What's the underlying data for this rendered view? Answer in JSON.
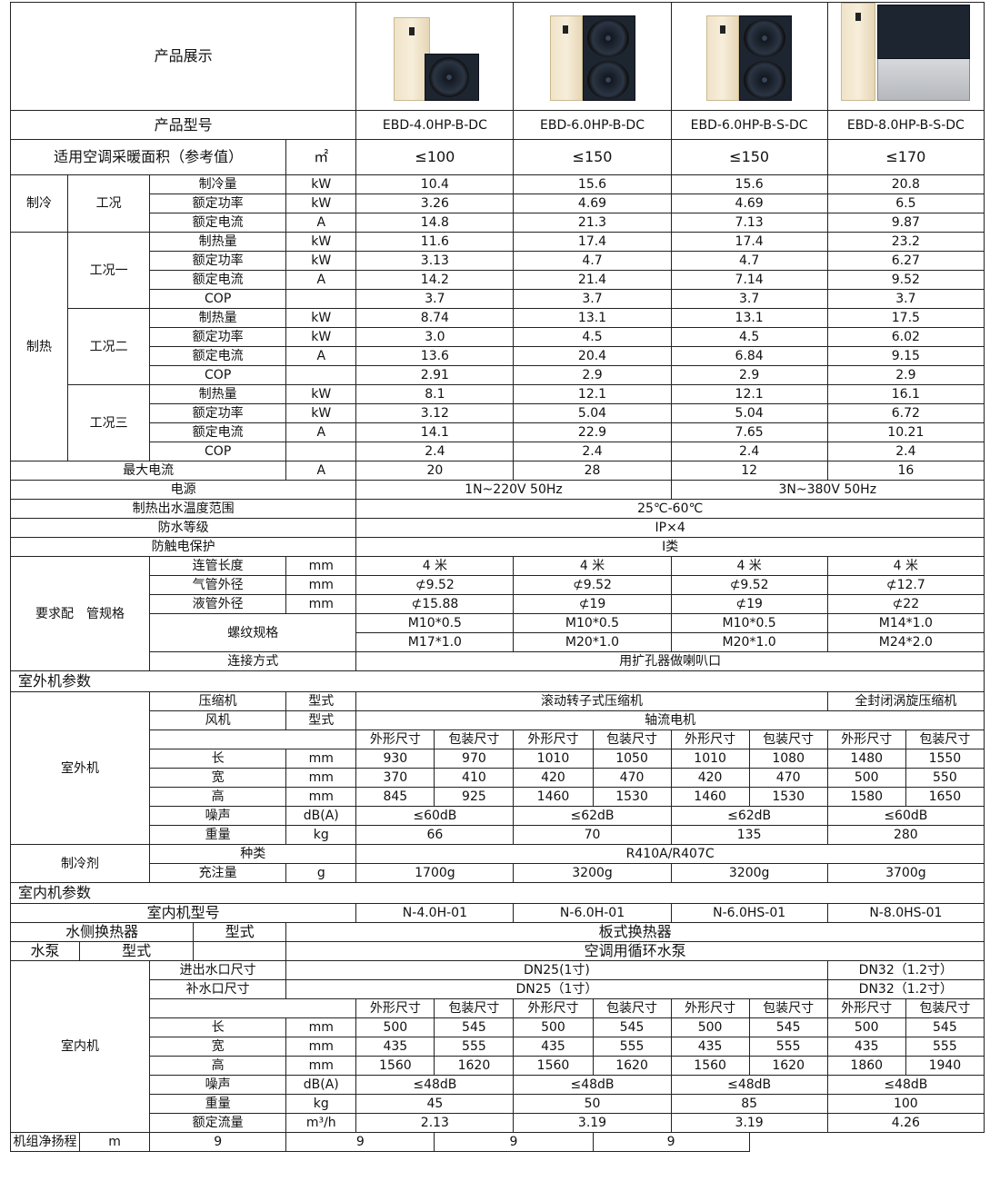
{
  "header": {
    "showcase": "产品展示",
    "model_label": "产品型号",
    "models": [
      "EBD-4.0HP-B-DC",
      "EBD-6.0HP-B-DC",
      "EBD-6.0HP-B-S-DC",
      "EBD-8.0HP-B-S-DC"
    ],
    "images": [
      "indoor-cabinet-plus-small-fan-unit",
      "indoor-cabinet-plus-double-fan-unit",
      "indoor-cabinet-plus-double-fan-unit",
      "indoor-cabinet-plus-large-fan-unit"
    ]
  },
  "area": {
    "label": "适用空调采暖面积（参考值）",
    "unit": "㎡",
    "values": [
      "≤100",
      "≤150",
      "≤150",
      "≤170"
    ]
  },
  "labels": {
    "cap_cool": "制冷量",
    "power": "额定功率",
    "current": "额定电流",
    "cap_heat": "制热量",
    "cop": "COP",
    "kw": "kW",
    "a": "A",
    "mm": "mm",
    "type": "型式",
    "outer": "外形尺寸",
    "pack": "包装尺寸",
    "len": "长",
    "wid": "宽",
    "hgt": "高",
    "noise": "噪声",
    "dba": "dB(A)",
    "weight": "重量",
    "kg": "kg"
  },
  "cooling": {
    "group": "制冷",
    "cond": "工况",
    "rows": [
      [
        "10.4",
        "15.6",
        "15.6",
        "20.8"
      ],
      [
        "3.26",
        "4.69",
        "4.69",
        "6.5"
      ],
      [
        "14.8",
        "21.3",
        "7.13",
        "9.87"
      ]
    ]
  },
  "heating": {
    "group": "制热",
    "conds": [
      "工况一",
      "工况二",
      "工况三"
    ],
    "rows": [
      [
        [
          "11.6",
          "17.4",
          "17.4",
          "23.2"
        ],
        [
          "3.13",
          "4.7",
          "4.7",
          "6.27"
        ],
        [
          "14.2",
          "21.4",
          "7.14",
          "9.52"
        ],
        [
          "3.7",
          "3.7",
          "3.7",
          "3.7"
        ]
      ],
      [
        [
          "8.74",
          "13.1",
          "13.1",
          "17.5"
        ],
        [
          "3.0",
          "4.5",
          "4.5",
          "6.02"
        ],
        [
          "13.6",
          "20.4",
          "6.84",
          "9.15"
        ],
        [
          "2.91",
          "2.9",
          "2.9",
          "2.9"
        ]
      ],
      [
        [
          "8.1",
          "12.1",
          "12.1",
          "16.1"
        ],
        [
          "3.12",
          "5.04",
          "5.04",
          "6.72"
        ],
        [
          "14.1",
          "22.9",
          "7.65",
          "10.21"
        ],
        [
          "2.4",
          "2.4",
          "2.4",
          "2.4"
        ]
      ]
    ]
  },
  "max_current": {
    "label": "最大电流",
    "unit": "A",
    "values": [
      "20",
      "28",
      "12",
      "16"
    ]
  },
  "power_supply": {
    "label": "电源",
    "values": [
      "1N~220V 50Hz",
      "3N~380V 50Hz"
    ]
  },
  "water_temp": {
    "label": "制热出水温度范围",
    "value": "25℃-60℃"
  },
  "waterproof": {
    "label": "防水等级",
    "value": "IP×4"
  },
  "shock": {
    "label": "防触电保护",
    "value": "Ⅰ类"
  },
  "piping": {
    "group": "要求配　管规格",
    "length": {
      "label": "连管长度",
      "values": [
        "4 米",
        "4 米",
        "4 米",
        "4 米"
      ]
    },
    "gas": {
      "label": "气管外径",
      "values": [
        "⊄9.52",
        "⊄9.52",
        "⊄9.52",
        "⊄12.7"
      ]
    },
    "liquid": {
      "label": "液管外径",
      "values": [
        "⊄15.88",
        "⊄19",
        "⊄19",
        "⊄22"
      ]
    },
    "thread": {
      "label": "螺纹规格",
      "row1": [
        "M10*0.5",
        "M10*0.5",
        "M10*0.5",
        "M14*1.0"
      ],
      "row2": [
        "M17*1.0",
        "M20*1.0",
        "M20*1.0",
        "M24*2.0"
      ]
    },
    "connect": {
      "label": "连接方式",
      "value": "用扩孔器做喇叭口"
    }
  },
  "outdoor": {
    "section": "室外机参数",
    "group": "室外机",
    "compressor": {
      "label": "压缩机",
      "values": [
        "滚动转子式压缩机",
        "全封闭涡旋压缩机"
      ]
    },
    "fan": {
      "label": "风机",
      "value": "轴流电机"
    },
    "len": [
      "930",
      "970",
      "1010",
      "1050",
      "1010",
      "1080",
      "1480",
      "1550"
    ],
    "wid": [
      "370",
      "410",
      "420",
      "470",
      "420",
      "470",
      "500",
      "550"
    ],
    "hgt": [
      "845",
      "925",
      "1460",
      "1530",
      "1460",
      "1530",
      "1580",
      "1650"
    ],
    "noise": [
      "≤60dB",
      "≤62dB",
      "≤62dB",
      "≤60dB"
    ],
    "weight": [
      "66",
      "70",
      "135",
      "280"
    ]
  },
  "refrigerant": {
    "group": "制冷剂",
    "kind_label": "种类",
    "kind": "R410A/R407C",
    "charge_label": "充注量",
    "unit": "g",
    "charge": [
      "1700g",
      "3200g",
      "3200g",
      "3700g"
    ]
  },
  "indoor": {
    "section": "室内机参数",
    "model_label": "室内机型号",
    "models": [
      "N-4.0H-01",
      "N-6.0H-01",
      "N-6.0HS-01",
      "N-8.0HS-01"
    ],
    "hex_label": "水侧换热器",
    "hex_value": "板式换热器",
    "pump_label": "水泵",
    "pump_value": "空调用循环水泵",
    "group": "室内机",
    "inlet_label": "进出水口尺寸",
    "inlet": [
      "DN25(1寸)",
      "DN32（1.2寸）"
    ],
    "makeup_label": "补水口尺寸",
    "makeup": [
      "DN25（1寸）",
      "DN32（1.2寸）"
    ],
    "len": [
      "500",
      "545",
      "500",
      "545",
      "500",
      "545",
      "500",
      "545"
    ],
    "wid": [
      "435",
      "555",
      "435",
      "555",
      "435",
      "555",
      "435",
      "555"
    ],
    "hgt": [
      "1560",
      "1620",
      "1560",
      "1620",
      "1560",
      "1620",
      "1860",
      "1940"
    ],
    "noise": [
      "≤48dB",
      "≤48dB",
      "≤48dB",
      "≤48dB"
    ],
    "weight": [
      "45",
      "50",
      "85",
      "100"
    ],
    "flow_label": "额定流量",
    "flow_unit": "m³/h",
    "flow": [
      "2.13",
      "3.19",
      "3.19",
      "4.26"
    ],
    "head_label": "机组净扬程",
    "head_unit": "m",
    "head": [
      "9",
      "9",
      "9",
      "9"
    ]
  }
}
